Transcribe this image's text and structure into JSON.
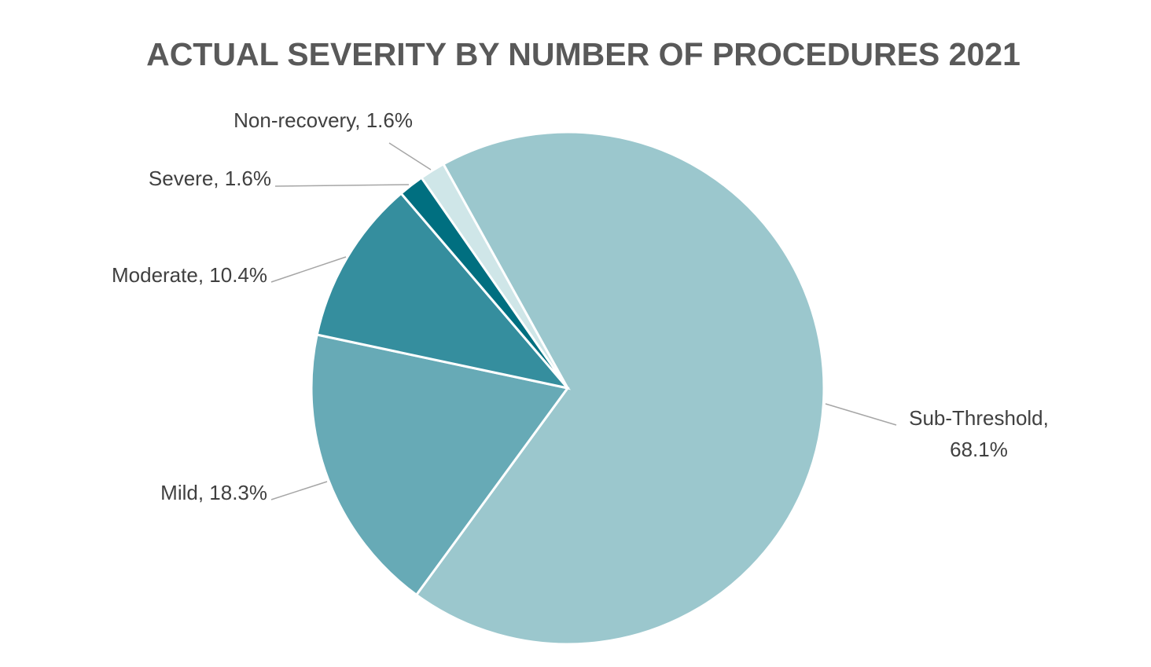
{
  "chart_data": {
    "type": "pie",
    "title": "ACTUAL SEVERITY BY NUMBER OF PROCEDURES 2021",
    "slices": [
      {
        "label": "Sub-Threshold",
        "value": 68.1,
        "display": "68.1%",
        "color": "#9bc7cd"
      },
      {
        "label": "Mild",
        "value": 18.3,
        "display": "18.3%",
        "color": "#67aab6"
      },
      {
        "label": "Moderate",
        "value": 10.4,
        "display": "10.4%",
        "color": "#358e9e"
      },
      {
        "label": "Severe",
        "value": 1.6,
        "display": "1.6%",
        "color": "#006f80"
      },
      {
        "label": "Non-recovery",
        "value": 1.6,
        "display": "1.6%",
        "color": "#cfe6e8"
      }
    ],
    "legend": "none",
    "data_labels": "outside with leader lines"
  }
}
